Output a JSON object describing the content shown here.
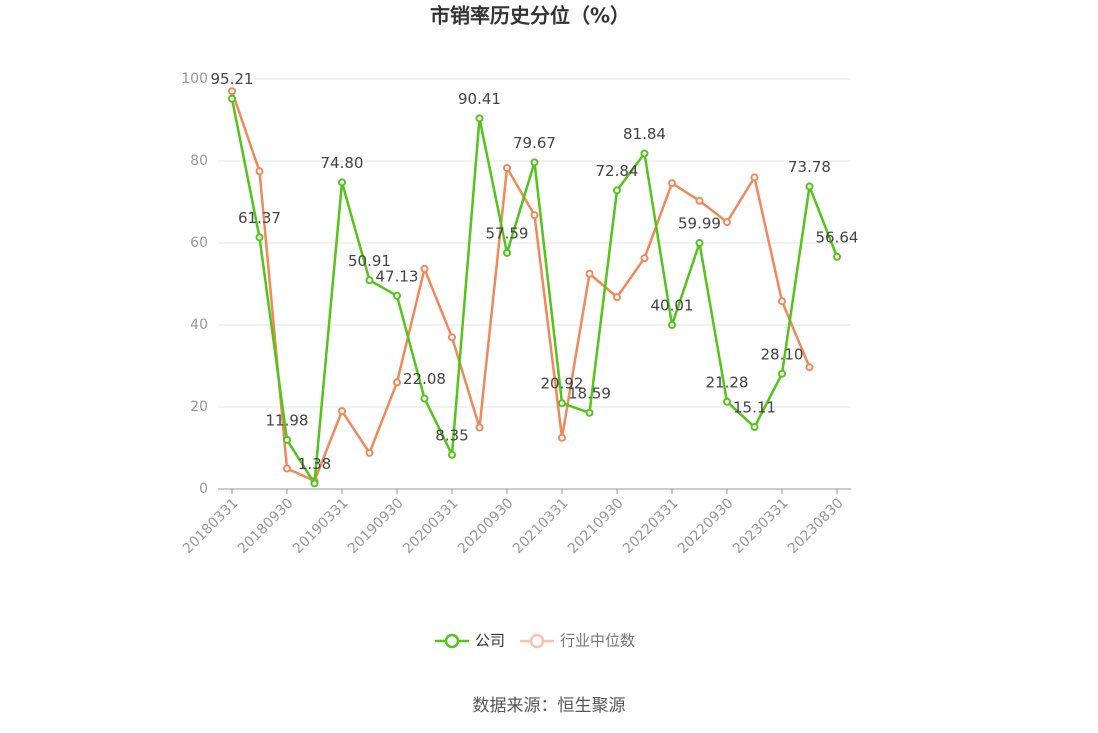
{
  "chart_data": {
    "type": "line",
    "title": "市销率历史分位（%）",
    "categories": [
      "20180331",
      null,
      "20180930",
      null,
      "20190331",
      null,
      "20190930",
      null,
      "20200331",
      null,
      "20200930",
      null,
      "20210331",
      null,
      "20210930",
      null,
      "20220331",
      null,
      "20220930",
      null,
      "20230331",
      null,
      "20230830"
    ],
    "series": [
      {
        "name": "公司",
        "color": "#52c41a",
        "values": [
          95.21,
          61.37,
          11.98,
          1.38,
          74.8,
          50.91,
          47.13,
          22.08,
          8.35,
          90.41,
          57.59,
          79.67,
          20.92,
          18.59,
          72.84,
          81.84,
          40.01,
          59.99,
          21.28,
          15.11,
          28.1,
          73.78,
          56.64
        ],
        "value_labels": [
          "95.21",
          "61.37",
          "11.98",
          "1.38",
          "74.80",
          "50.91",
          "47.13",
          "22.08",
          "8.35",
          "90.41",
          "57.59",
          "79.67",
          "20.92",
          "18.59",
          "72.84",
          "81.84",
          "40.01",
          "59.99",
          "21.28",
          "15.11",
          "28.10",
          "73.78",
          "56.64"
        ]
      },
      {
        "name": "行业中位数",
        "color": "#f0885a",
        "values": [
          97,
          77.5,
          5,
          2,
          19,
          8.8,
          26,
          53.7,
          37,
          15,
          78.3,
          66.8,
          12.5,
          52.5,
          46.8,
          56.3,
          74.6,
          70.3,
          65.1,
          76,
          45.8,
          29.7,
          null
        ]
      }
    ],
    "ylim": [
      0,
      100
    ],
    "yticks": [
      0,
      20,
      40,
      60,
      80,
      100
    ],
    "grid": true,
    "source": "数据来源：恒生聚源"
  }
}
